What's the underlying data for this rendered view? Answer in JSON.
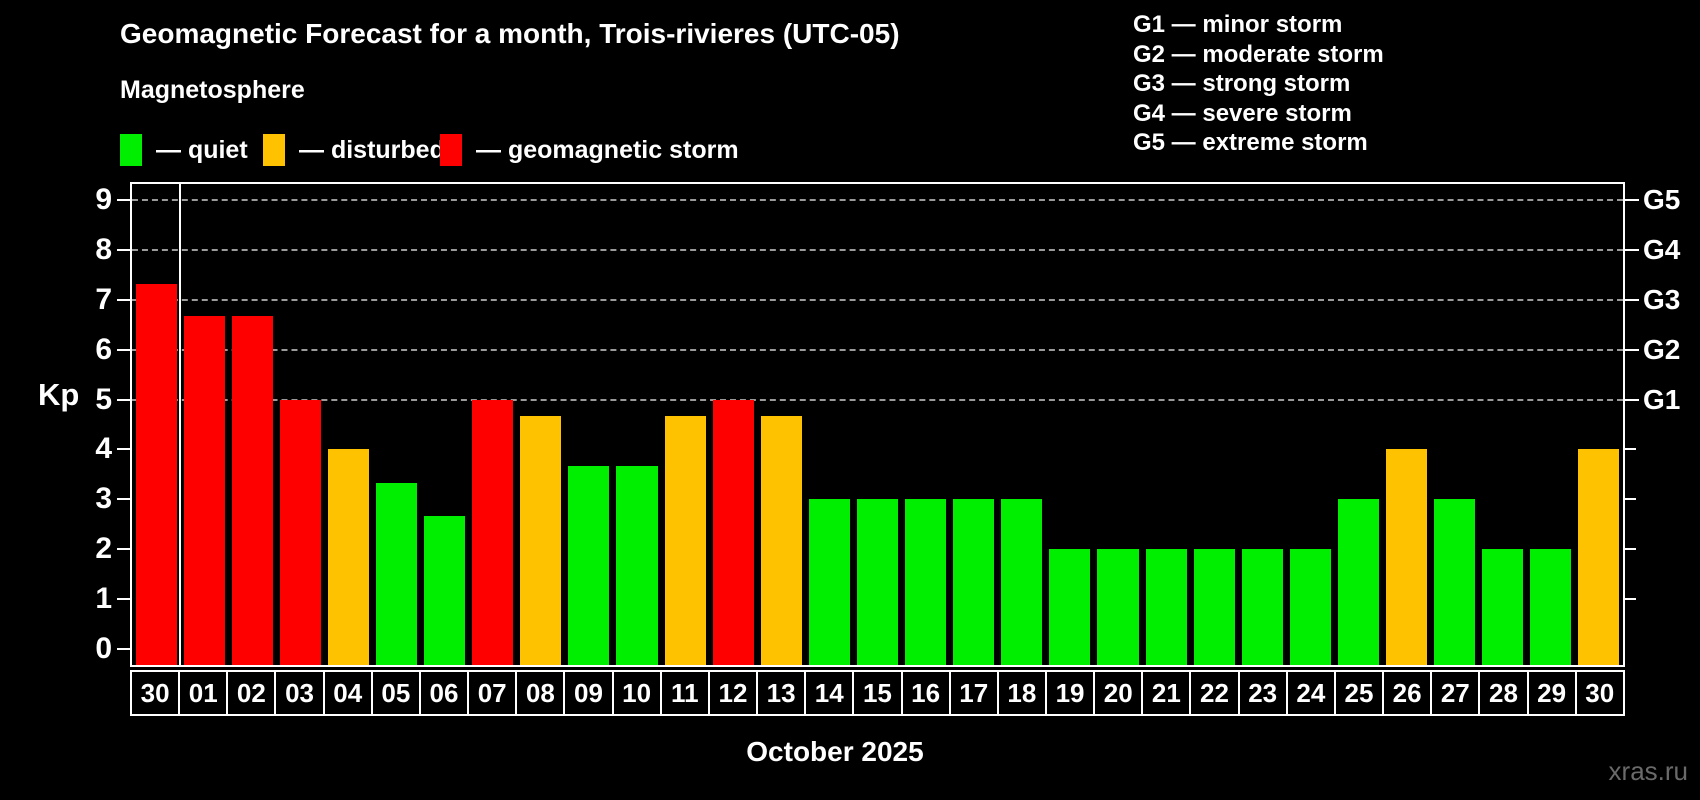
{
  "header": {
    "title": "Geomagnetic Forecast for a month, Trois-rivieres (UTC-05)",
    "subtitle": "Magnetosphere",
    "legend": [
      {
        "label": "— quiet",
        "level": "quiet"
      },
      {
        "label": "— disturbed",
        "level": "disturbed"
      },
      {
        "label": "— geomagnetic storm",
        "level": "storm"
      }
    ],
    "g_legend": [
      "G1 — minor storm",
      "G2 — moderate storm",
      "G3 — strong storm",
      "G4 — severe storm",
      "G5 — extreme storm"
    ]
  },
  "colors": {
    "quiet": "#00ef00",
    "disturbed": "#ffc200",
    "storm": "#ff0000",
    "grid": "#9a9a9a",
    "frame": "#ffffff",
    "watermark": "#6a6a6a"
  },
  "axes": {
    "y_label": "Kp",
    "x_label": "October 2025",
    "y_ticks": [
      0,
      1,
      2,
      3,
      4,
      5,
      6,
      7,
      8,
      9
    ],
    "y_min": -0.33,
    "y_max": 9.33,
    "gridlines_at": [
      5,
      6,
      7,
      8,
      9
    ],
    "right_labels": [
      {
        "kp": 5,
        "label": "G1"
      },
      {
        "kp": 6,
        "label": "G2"
      },
      {
        "kp": 7,
        "label": "G3"
      },
      {
        "kp": 8,
        "label": "G4"
      },
      {
        "kp": 9,
        "label": "G5"
      }
    ],
    "right_minor_ticks": [
      1,
      2,
      3,
      4
    ]
  },
  "chart_data": {
    "type": "bar",
    "title": "Geomagnetic Forecast for a month, Trois-rivieres (UTC-05)",
    "xlabel": "October 2025",
    "ylabel": "Kp",
    "ylim": [
      -0.33,
      9.33
    ],
    "legend_position": "top-left",
    "grid": "dashed horizontal at Kp 5-9",
    "separator_after_index": 0,
    "categories": [
      "30",
      "01",
      "02",
      "03",
      "04",
      "05",
      "06",
      "07",
      "08",
      "09",
      "10",
      "11",
      "12",
      "13",
      "14",
      "15",
      "16",
      "17",
      "18",
      "19",
      "20",
      "21",
      "22",
      "23",
      "24",
      "25",
      "26",
      "27",
      "28",
      "29",
      "30"
    ],
    "bars": [
      {
        "label": "30",
        "value": 7.33,
        "level": "storm"
      },
      {
        "label": "01",
        "value": 6.67,
        "level": "storm"
      },
      {
        "label": "02",
        "value": 6.67,
        "level": "storm"
      },
      {
        "label": "03",
        "value": 5.0,
        "level": "storm"
      },
      {
        "label": "04",
        "value": 4.0,
        "level": "disturbed"
      },
      {
        "label": "05",
        "value": 3.33,
        "level": "quiet"
      },
      {
        "label": "06",
        "value": 2.67,
        "level": "quiet"
      },
      {
        "label": "07",
        "value": 5.0,
        "level": "storm"
      },
      {
        "label": "08",
        "value": 4.67,
        "level": "disturbed"
      },
      {
        "label": "09",
        "value": 3.67,
        "level": "quiet"
      },
      {
        "label": "10",
        "value": 3.67,
        "level": "quiet"
      },
      {
        "label": "11",
        "value": 4.67,
        "level": "disturbed"
      },
      {
        "label": "12",
        "value": 5.0,
        "level": "storm"
      },
      {
        "label": "13",
        "value": 4.67,
        "level": "disturbed"
      },
      {
        "label": "14",
        "value": 3.0,
        "level": "quiet"
      },
      {
        "label": "15",
        "value": 3.0,
        "level": "quiet"
      },
      {
        "label": "16",
        "value": 3.0,
        "level": "quiet"
      },
      {
        "label": "17",
        "value": 3.0,
        "level": "quiet"
      },
      {
        "label": "18",
        "value": 3.0,
        "level": "quiet"
      },
      {
        "label": "19",
        "value": 2.0,
        "level": "quiet"
      },
      {
        "label": "20",
        "value": 2.0,
        "level": "quiet"
      },
      {
        "label": "21",
        "value": 2.0,
        "level": "quiet"
      },
      {
        "label": "22",
        "value": 2.0,
        "level": "quiet"
      },
      {
        "label": "23",
        "value": 2.0,
        "level": "quiet"
      },
      {
        "label": "24",
        "value": 2.0,
        "level": "quiet"
      },
      {
        "label": "25",
        "value": 3.0,
        "level": "quiet"
      },
      {
        "label": "26",
        "value": 4.0,
        "level": "disturbed"
      },
      {
        "label": "27",
        "value": 3.0,
        "level": "quiet"
      },
      {
        "label": "28",
        "value": 2.0,
        "level": "quiet"
      },
      {
        "label": "29",
        "value": 2.0,
        "level": "quiet"
      },
      {
        "label": "30",
        "value": 4.0,
        "level": "disturbed"
      }
    ]
  },
  "watermark": "xras.ru",
  "kp_axis_title": "Kp"
}
